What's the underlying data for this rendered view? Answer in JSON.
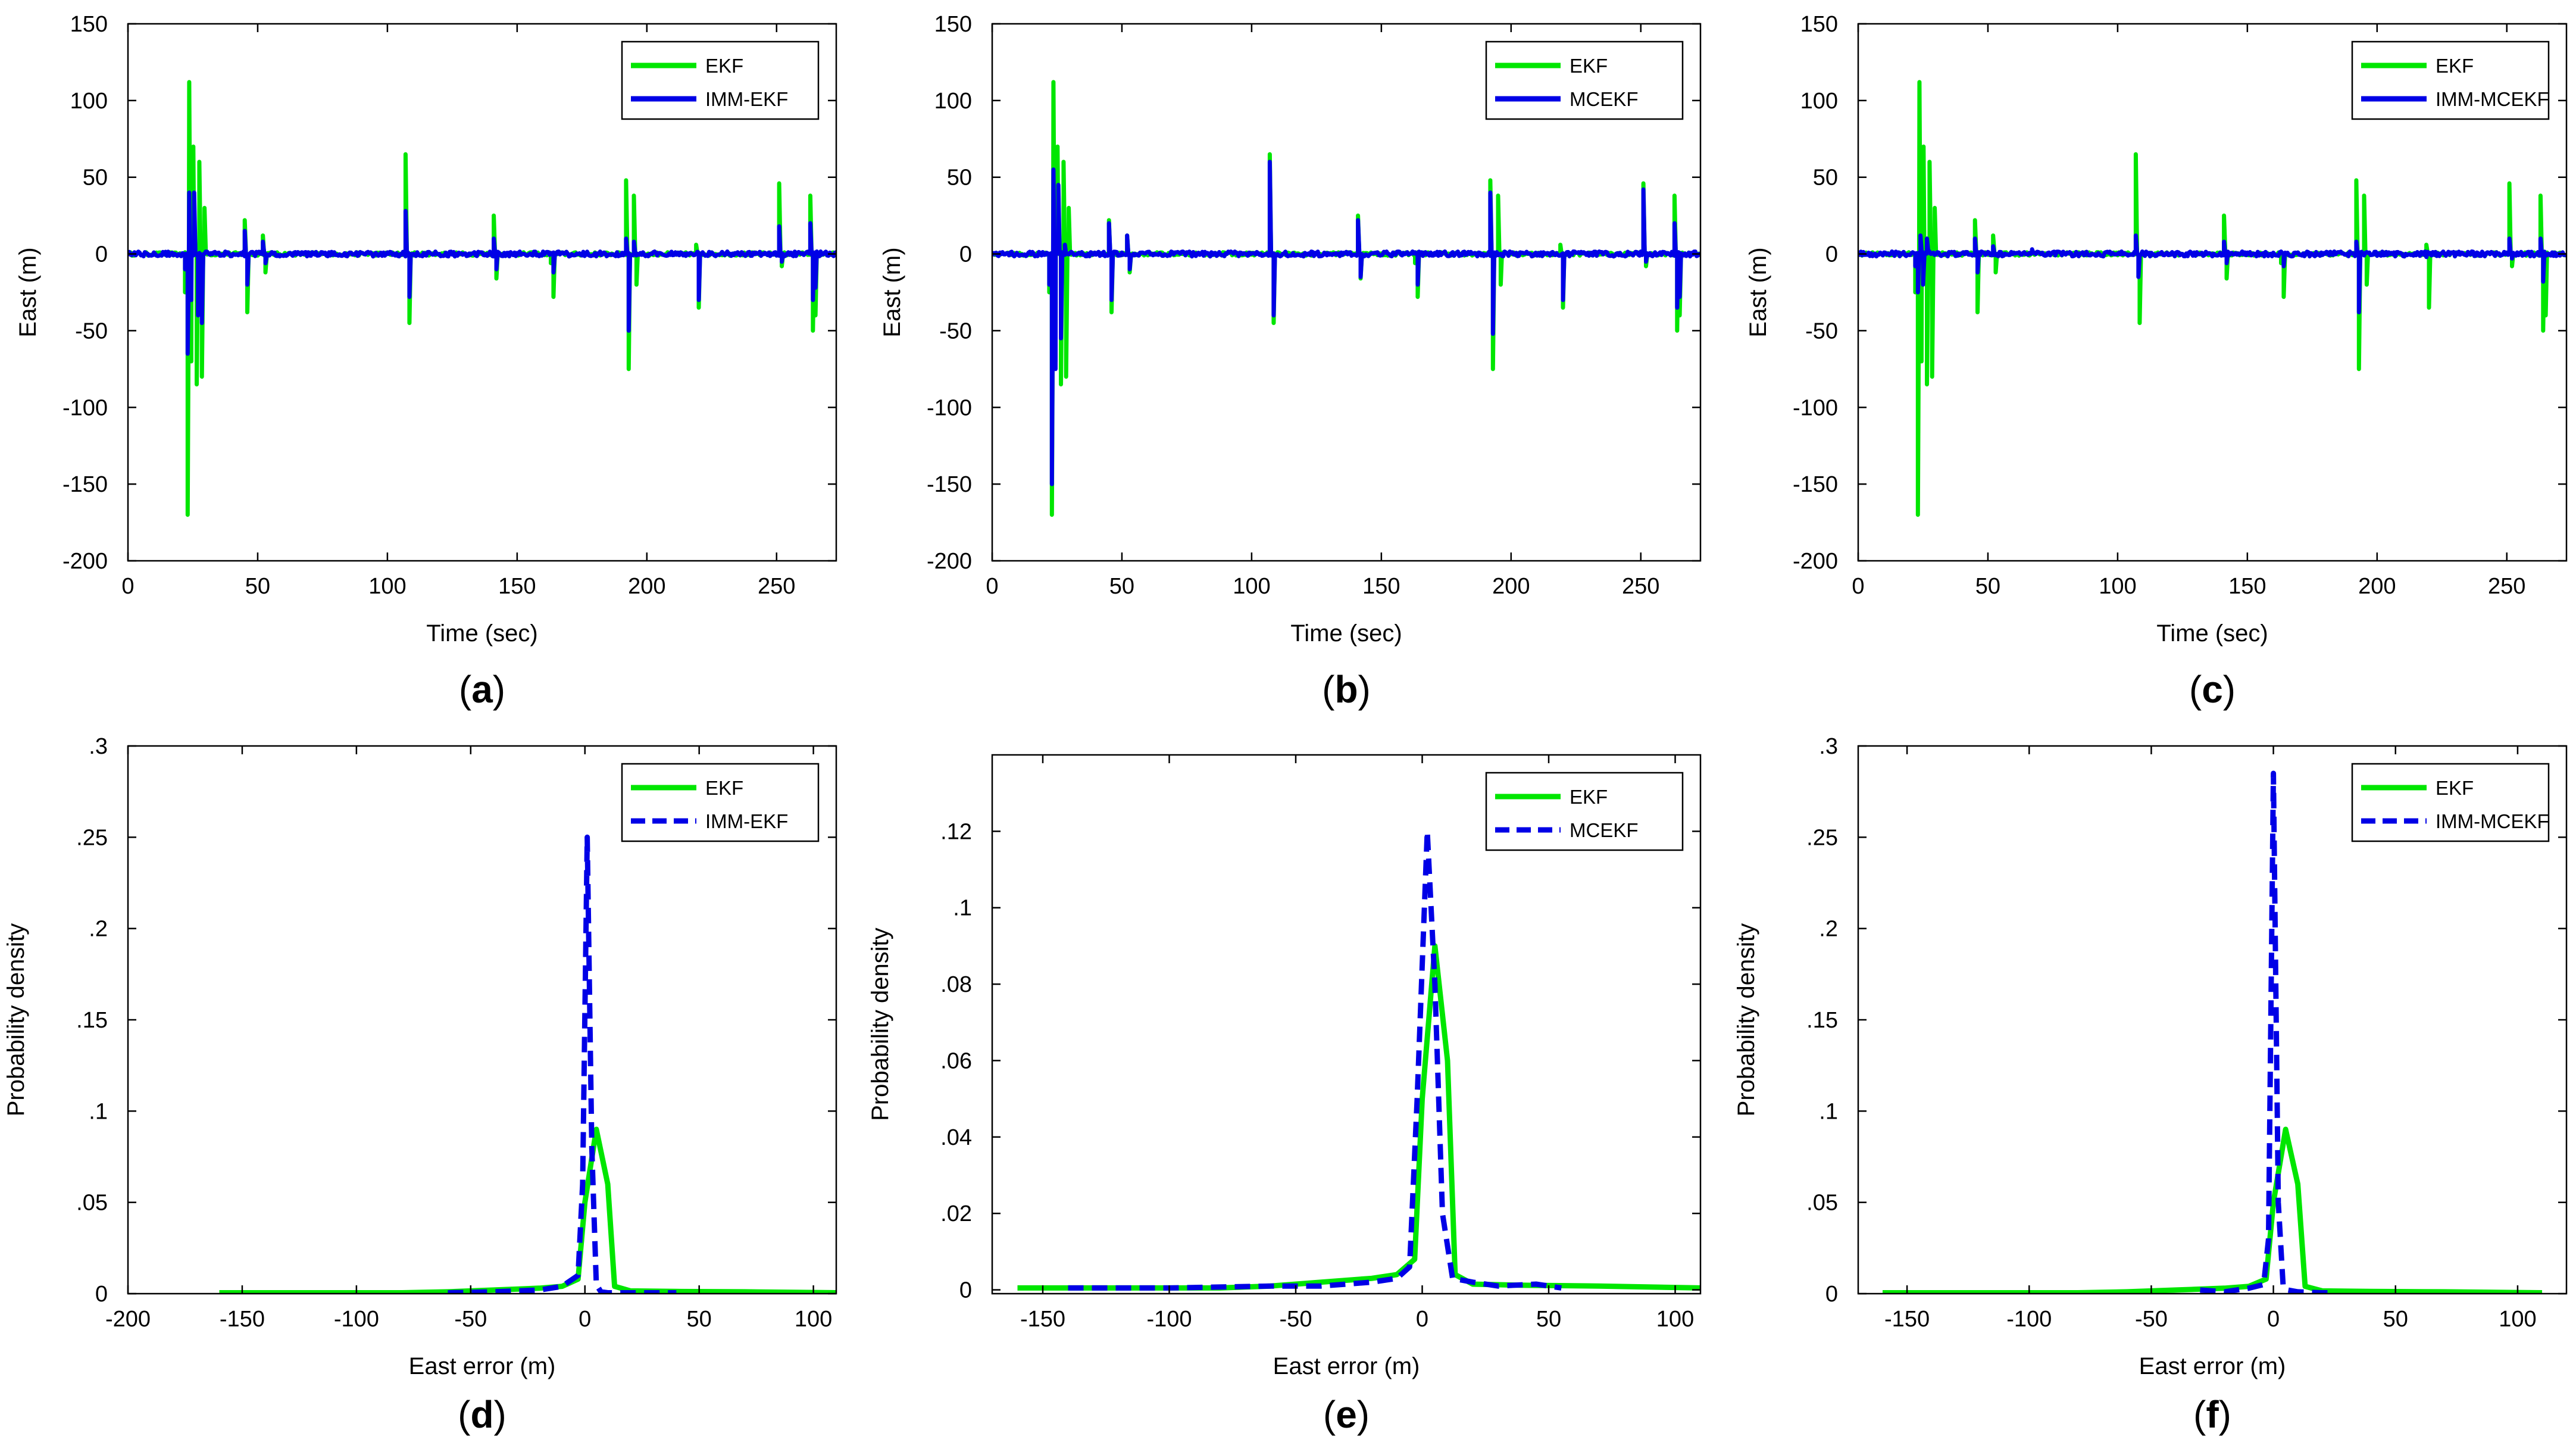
{
  "figure": {
    "panels": [
      {
        "panel_label": "(a)",
        "letter": "a"
      },
      {
        "panel_label": "(b)",
        "letter": "b"
      },
      {
        "panel_label": "(c)",
        "letter": "c"
      },
      {
        "panel_label": "(d)",
        "letter": "d"
      },
      {
        "panel_label": "(e)",
        "letter": "e"
      },
      {
        "panel_label": "(f)",
        "letter": "f"
      }
    ]
  },
  "colors": {
    "ekf": "#00e600",
    "filter": "#0000e6",
    "axis": "#000000"
  },
  "chart_data": [
    {
      "type": "line",
      "panel": "a",
      "xlabel": "Time (sec)",
      "ylabel": "East (m)",
      "xlim": [
        0,
        273
      ],
      "ylim": [
        -200,
        150
      ],
      "xticks": [
        0,
        50,
        100,
        150,
        200,
        250
      ],
      "yticks": [
        150,
        100,
        50,
        0,
        -50,
        -100,
        -150,
        -200
      ],
      "legend_position": "top-right",
      "series": [
        {
          "name": "EKF",
          "style": "solid",
          "color": "#00e600",
          "spikes": [
            [
              22,
              -25
            ],
            [
              23,
              -170
            ],
            [
              23.6,
              112
            ],
            [
              24.4,
              -70
            ],
            [
              25.2,
              70
            ],
            [
              26.5,
              -85
            ],
            [
              27.5,
              60
            ],
            [
              28.5,
              -80
            ],
            [
              29.5,
              30
            ],
            [
              45,
              22
            ],
            [
              46,
              -38
            ],
            [
              52,
              12
            ],
            [
              53,
              -12
            ],
            [
              107,
              65
            ],
            [
              108.5,
              -45
            ],
            [
              141,
              25
            ],
            [
              142,
              -16
            ],
            [
              163,
              -6
            ],
            [
              164,
              -28
            ],
            [
              192,
              48
            ],
            [
              193,
              -75
            ],
            [
              195,
              38
            ],
            [
              196,
              -20
            ],
            [
              219,
              6
            ],
            [
              220,
              -35
            ],
            [
              251,
              46
            ],
            [
              252,
              -8
            ],
            [
              263,
              38
            ],
            [
              264,
              -50
            ],
            [
              265,
              -40
            ]
          ]
        },
        {
          "name": "IMM-EKF",
          "style": "solid",
          "color": "#0000e6",
          "spikes": [
            [
              22,
              -10
            ],
            [
              23,
              -65
            ],
            [
              23.6,
              40
            ],
            [
              24.4,
              -30
            ],
            [
              25.5,
              40
            ],
            [
              27,
              -40
            ],
            [
              28.5,
              -45
            ],
            [
              45,
              15
            ],
            [
              46,
              -20
            ],
            [
              52,
              8
            ],
            [
              53,
              -6
            ],
            [
              107,
              28
            ],
            [
              108.5,
              -28
            ],
            [
              141,
              10
            ],
            [
              142,
              -10
            ],
            [
              164,
              -12
            ],
            [
              192,
              10
            ],
            [
              193,
              -50
            ],
            [
              195,
              8
            ],
            [
              220,
              -30
            ],
            [
              251,
              18
            ],
            [
              252,
              -5
            ],
            [
              263,
              20
            ],
            [
              264,
              -30
            ],
            [
              265,
              -22
            ]
          ]
        }
      ]
    },
    {
      "type": "line",
      "panel": "b",
      "xlabel": "Time (sec)",
      "ylabel": "East (m)",
      "xlim": [
        0,
        273
      ],
      "ylim": [
        -200,
        150
      ],
      "xticks": [
        0,
        50,
        100,
        150,
        200,
        250
      ],
      "yticks": [
        150,
        100,
        50,
        0,
        -50,
        -100,
        -150,
        -200
      ],
      "legend_position": "top-right",
      "series": [
        {
          "name": "EKF",
          "style": "solid",
          "color": "#00e600",
          "spikes": [
            [
              22,
              -25
            ],
            [
              23,
              -170
            ],
            [
              23.6,
              112
            ],
            [
              24.4,
              -70
            ],
            [
              25.2,
              70
            ],
            [
              26.5,
              -85
            ],
            [
              27.5,
              60
            ],
            [
              28.5,
              -80
            ],
            [
              29.5,
              30
            ],
            [
              45,
              22
            ],
            [
              46,
              -38
            ],
            [
              52,
              12
            ],
            [
              53,
              -12
            ],
            [
              107,
              65
            ],
            [
              108.5,
              -45
            ],
            [
              141,
              25
            ],
            [
              142,
              -16
            ],
            [
              163,
              -6
            ],
            [
              164,
              -28
            ],
            [
              192,
              48
            ],
            [
              193,
              -75
            ],
            [
              195,
              38
            ],
            [
              196,
              -20
            ],
            [
              219,
              6
            ],
            [
              220,
              -35
            ],
            [
              251,
              46
            ],
            [
              252,
              -8
            ],
            [
              263,
              38
            ],
            [
              264,
              -50
            ],
            [
              265,
              -40
            ]
          ]
        },
        {
          "name": "MCEKF",
          "style": "solid",
          "color": "#0000e6",
          "spikes": [
            [
              22,
              -20
            ],
            [
              23,
              -150
            ],
            [
              23.6,
              55
            ],
            [
              24.4,
              -75
            ],
            [
              25.5,
              45
            ],
            [
              26.5,
              -55
            ],
            [
              28,
              6
            ],
            [
              45,
              20
            ],
            [
              46,
              -30
            ],
            [
              52,
              12
            ],
            [
              53,
              -10
            ],
            [
              107,
              60
            ],
            [
              108.5,
              -40
            ],
            [
              141,
              22
            ],
            [
              142,
              -15
            ],
            [
              164,
              -20
            ],
            [
              192,
              40
            ],
            [
              193,
              -52
            ],
            [
              220,
              -30
            ],
            [
              251,
              42
            ],
            [
              252,
              -5
            ],
            [
              263,
              20
            ],
            [
              264,
              -35
            ],
            [
              265,
              -28
            ]
          ]
        }
      ]
    },
    {
      "type": "line",
      "panel": "c",
      "xlabel": "Time (sec)",
      "ylabel": "East (m)",
      "xlim": [
        0,
        273
      ],
      "ylim": [
        -200,
        150
      ],
      "xticks": [
        0,
        50,
        100,
        150,
        200,
        250
      ],
      "yticks": [
        150,
        100,
        50,
        0,
        -50,
        -100,
        -150,
        -200
      ],
      "legend_position": "top-right",
      "series": [
        {
          "name": "EKF",
          "style": "solid",
          "color": "#00e600",
          "spikes": [
            [
              22,
              -25
            ],
            [
              23,
              -170
            ],
            [
              23.6,
              112
            ],
            [
              24.4,
              -70
            ],
            [
              25.2,
              70
            ],
            [
              26.5,
              -85
            ],
            [
              27.5,
              60
            ],
            [
              28.5,
              -80
            ],
            [
              29.5,
              30
            ],
            [
              45,
              22
            ],
            [
              46,
              -38
            ],
            [
              52,
              12
            ],
            [
              53,
              -12
            ],
            [
              107,
              65
            ],
            [
              108.5,
              -45
            ],
            [
              141,
              25
            ],
            [
              142,
              -16
            ],
            [
              163,
              -6
            ],
            [
              164,
              -28
            ],
            [
              192,
              48
            ],
            [
              193,
              -75
            ],
            [
              195,
              38
            ],
            [
              196,
              -20
            ],
            [
              219,
              6
            ],
            [
              220,
              -35
            ],
            [
              251,
              46
            ],
            [
              252,
              -8
            ],
            [
              263,
              38
            ],
            [
              264,
              -50
            ],
            [
              265,
              -40
            ]
          ]
        },
        {
          "name": "IMM-MCEKF",
          "style": "solid",
          "color": "#0000e6",
          "spikes": [
            [
              22,
              -8
            ],
            [
              23,
              -25
            ],
            [
              24,
              12
            ],
            [
              25,
              -20
            ],
            [
              26.5,
              10
            ],
            [
              45,
              10
            ],
            [
              46,
              -12
            ],
            [
              52,
              5
            ],
            [
              67,
              3
            ],
            [
              107,
              12
            ],
            [
              108,
              -15
            ],
            [
              141,
              8
            ],
            [
              142,
              -6
            ],
            [
              164,
              -8
            ],
            [
              192,
              8
            ],
            [
              193,
              -38
            ],
            [
              219,
              -2
            ],
            [
              251,
              10
            ],
            [
              252,
              -3
            ],
            [
              263,
              10
            ],
            [
              264,
              -18
            ]
          ]
        }
      ]
    },
    {
      "type": "line",
      "panel": "d",
      "xlabel": "East error (m)",
      "ylabel": "Probability density",
      "xlim": [
        -200,
        110
      ],
      "ylim": [
        0,
        0.3
      ],
      "xticks": [
        -200,
        -150,
        -100,
        -50,
        0,
        50,
        100
      ],
      "yticks": [
        0.3,
        0.25,
        0.2,
        0.15,
        0.1,
        0.05,
        0
      ],
      "legend_position": "top-right",
      "series": [
        {
          "name": "EKF",
          "style": "solid",
          "color": "#00e600",
          "x": [
            -160,
            -120,
            -80,
            -60,
            -40,
            -20,
            -10,
            -3,
            0,
            5,
            10,
            13,
            20,
            40,
            70,
            110
          ],
          "y": [
            0.0005,
            0.0005,
            0.0005,
            0.001,
            0.002,
            0.003,
            0.004,
            0.008,
            0.05,
            0.09,
            0.06,
            0.004,
            0.0015,
            0.0012,
            0.001,
            0.0005
          ]
        },
        {
          "name": "IMM-EKF",
          "style": "dashed",
          "color": "#0000e6",
          "x": [
            -60,
            -40,
            -20,
            -10,
            -3,
            -1,
            1,
            3,
            5,
            7,
            10,
            20,
            30,
            40
          ],
          "y": [
            0.0005,
            0.001,
            0.002,
            0.004,
            0.01,
            0.06,
            0.25,
            0.08,
            0.005,
            0.001,
            0.0005,
            0.0005,
            0.0005,
            0.0005
          ]
        }
      ]
    },
    {
      "type": "line",
      "panel": "e",
      "xlabel": "East error (m)",
      "ylabel": "Probability density",
      "xlim": [
        -170,
        110
      ],
      "ylim": [
        -0.001,
        0.14
      ],
      "xticks": [
        -150,
        -100,
        -50,
        0,
        50,
        100
      ],
      "yticks": [
        0.12,
        0.1,
        0.08,
        0.06,
        0.04,
        0.02,
        0
      ],
      "legend_position": "top-right",
      "series": [
        {
          "name": "EKF",
          "style": "solid",
          "color": "#00e600",
          "x": [
            -160,
            -120,
            -80,
            -60,
            -40,
            -20,
            -10,
            -3,
            0,
            5,
            10,
            13,
            20,
            40,
            70,
            110
          ],
          "y": [
            0.0005,
            0.0005,
            0.0005,
            0.001,
            0.002,
            0.003,
            0.004,
            0.008,
            0.05,
            0.09,
            0.06,
            0.004,
            0.0015,
            0.0012,
            0.001,
            0.0005
          ]
        },
        {
          "name": "MCEKF",
          "style": "dashed",
          "color": "#0000e6",
          "x": [
            -140,
            -100,
            -60,
            -40,
            -20,
            -10,
            -5,
            -2,
            2,
            5,
            8,
            12,
            20,
            30,
            45,
            55
          ],
          "y": [
            0.0005,
            0.0005,
            0.001,
            0.001,
            0.002,
            0.003,
            0.006,
            0.05,
            0.12,
            0.08,
            0.02,
            0.003,
            0.002,
            0.001,
            0.0015,
            0.0005
          ]
        }
      ]
    },
    {
      "type": "line",
      "panel": "f",
      "xlabel": "East error (m)",
      "ylabel": "Probability density",
      "xlim": [
        -170,
        120
      ],
      "ylim": [
        0,
        0.3
      ],
      "xticks": [
        -150,
        -100,
        -50,
        0,
        50,
        100
      ],
      "yticks": [
        0.3,
        0.25,
        0.2,
        0.15,
        0.1,
        0.05,
        0
      ],
      "legend_position": "top-right",
      "series": [
        {
          "name": "EKF",
          "style": "solid",
          "color": "#00e600",
          "x": [
            -160,
            -120,
            -80,
            -60,
            -40,
            -20,
            -10,
            -3,
            0,
            5,
            10,
            13,
            20,
            40,
            70,
            110
          ],
          "y": [
            0.0005,
            0.0005,
            0.0005,
            0.001,
            0.002,
            0.003,
            0.004,
            0.008,
            0.05,
            0.09,
            0.06,
            0.004,
            0.0015,
            0.0012,
            0.001,
            0.0005
          ]
        },
        {
          "name": "IMM-MCEKF",
          "style": "dashed",
          "color": "#0000e6",
          "x": [
            -30,
            -20,
            -10,
            -4,
            -2,
            0,
            2,
            4,
            6,
            10,
            20,
            25
          ],
          "y": [
            0.002,
            0.001,
            0.003,
            0.005,
            0.03,
            0.285,
            0.05,
            0.004,
            0.002,
            0.001,
            0.0005,
            0.0005
          ]
        }
      ]
    }
  ]
}
